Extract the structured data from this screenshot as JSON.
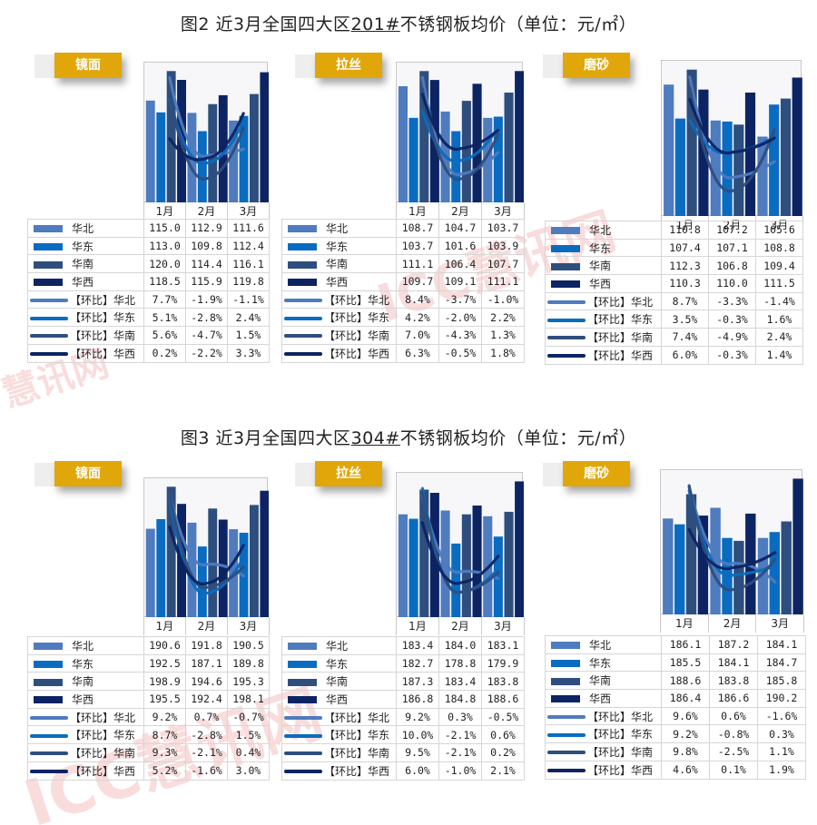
{
  "figures": [
    {
      "title_prefix": "图2  近3月全国四大区",
      "title_grade": "201#",
      "title_suffix": "不锈钢板均价（单位：元/㎡）",
      "panels": [
        {
          "finish": "镜面",
          "months": [
            "1月",
            "2月",
            "3月"
          ],
          "rows": [
            {
              "label": "华北",
              "values": [
                "115.0",
                "112.9",
                "111.6"
              ]
            },
            {
              "label": "华东",
              "values": [
                "113.0",
                "109.8",
                "112.4"
              ]
            },
            {
              "label": "华南",
              "values": [
                "120.0",
                "114.4",
                "116.1"
              ]
            },
            {
              "label": "华西",
              "values": [
                "118.5",
                "115.9",
                "119.8"
              ]
            },
            {
              "label": "【环比】华北",
              "values": [
                "7.7%",
                "-1.9%",
                "-1.1%"
              ]
            },
            {
              "label": "【环比】华东",
              "values": [
                "5.1%",
                "-2.8%",
                "2.4%"
              ]
            },
            {
              "label": "【环比】华南",
              "values": [
                "5.6%",
                "-4.7%",
                "1.5%"
              ]
            },
            {
              "label": "【环比】华西",
              "values": [
                "0.2%",
                "-2.2%",
                "3.3%"
              ]
            }
          ]
        },
        {
          "finish": "拉丝",
          "months": [
            "1月",
            "2月",
            "3月"
          ],
          "rows": [
            {
              "label": "华北",
              "values": [
                "108.7",
                "104.7",
                "103.7"
              ]
            },
            {
              "label": "华东",
              "values": [
                "103.7",
                "101.6",
                "103.9"
              ]
            },
            {
              "label": "华南",
              "values": [
                "111.1",
                "106.4",
                "107.7"
              ]
            },
            {
              "label": "华西",
              "values": [
                "109.7",
                "109.1",
                "111.1"
              ]
            },
            {
              "label": "【环比】华北",
              "values": [
                "8.4%",
                "-3.7%",
                "-1.0%"
              ]
            },
            {
              "label": "【环比】华东",
              "values": [
                "4.2%",
                "-2.0%",
                "2.2%"
              ]
            },
            {
              "label": "【环比】华南",
              "values": [
                "7.0%",
                "-4.3%",
                "1.3%"
              ]
            },
            {
              "label": "【环比】华西",
              "values": [
                "6.3%",
                "-0.5%",
                "1.8%"
              ]
            }
          ]
        },
        {
          "finish": "磨砂",
          "months": [
            "1月",
            "2月",
            "3月"
          ],
          "rows": [
            {
              "label": "华北",
              "values": [
                "110.8",
                "107.2",
                "105.6"
              ]
            },
            {
              "label": "华东",
              "values": [
                "107.4",
                "107.1",
                "108.8"
              ]
            },
            {
              "label": "华南",
              "values": [
                "112.3",
                "106.8",
                "109.4"
              ]
            },
            {
              "label": "华西",
              "values": [
                "110.3",
                "110.0",
                "111.5"
              ]
            },
            {
              "label": "【环比】华北",
              "values": [
                "8.7%",
                "-3.3%",
                "-1.4%"
              ]
            },
            {
              "label": "【环比】华东",
              "values": [
                "3.5%",
                "-0.3%",
                "1.6%"
              ]
            },
            {
              "label": "【环比】华南",
              "values": [
                "7.4%",
                "-4.9%",
                "2.4%"
              ]
            },
            {
              "label": "【环比】华西",
              "values": [
                "6.0%",
                "-0.3%",
                "1.4%"
              ]
            }
          ]
        }
      ]
    },
    {
      "title_prefix": "图3  近3月全国四大区",
      "title_grade": "304#",
      "title_suffix": "不锈钢板均价（单位：元/㎡）",
      "panels": [
        {
          "finish": "镜面",
          "months": [
            "1月",
            "2月",
            "3月"
          ],
          "rows": [
            {
              "label": "华北",
              "values": [
                "190.6",
                "191.8",
                "190.5"
              ]
            },
            {
              "label": "华东",
              "values": [
                "192.5",
                "187.1",
                "189.8"
              ]
            },
            {
              "label": "华南",
              "values": [
                "198.9",
                "194.6",
                "195.3"
              ]
            },
            {
              "label": "华西",
              "values": [
                "195.5",
                "192.4",
                "198.1"
              ]
            },
            {
              "label": "【环比】华北",
              "values": [
                "9.2%",
                "0.7%",
                "-0.7%"
              ]
            },
            {
              "label": "【环比】华东",
              "values": [
                "8.7%",
                "-2.8%",
                "1.5%"
              ]
            },
            {
              "label": "【环比】华南",
              "values": [
                "9.3%",
                "-2.1%",
                "0.4%"
              ]
            },
            {
              "label": "【环比】华西",
              "values": [
                "5.2%",
                "-1.6%",
                "3.0%"
              ]
            }
          ]
        },
        {
          "finish": "拉丝",
          "months": [
            "1月",
            "2月",
            "3月"
          ],
          "rows": [
            {
              "label": "华北",
              "values": [
                "183.4",
                "184.0",
                "183.1"
              ]
            },
            {
              "label": "华东",
              "values": [
                "182.7",
                "178.8",
                "179.9"
              ]
            },
            {
              "label": "华南",
              "values": [
                "187.3",
                "183.4",
                "183.8"
              ]
            },
            {
              "label": "华西",
              "values": [
                "186.8",
                "184.8",
                "188.6"
              ]
            },
            {
              "label": "【环比】华北",
              "values": [
                "9.2%",
                "0.3%",
                "-0.5%"
              ]
            },
            {
              "label": "【环比】华东",
              "values": [
                "10.0%",
                "-2.1%",
                "0.6%"
              ]
            },
            {
              "label": "【环比】华南",
              "values": [
                "9.5%",
                "-2.1%",
                "0.2%"
              ]
            },
            {
              "label": "【环比】华西",
              "values": [
                "6.0%",
                "-1.0%",
                "2.1%"
              ]
            }
          ]
        },
        {
          "finish": "磨砂",
          "months": [
            "1月",
            "2月",
            "3月"
          ],
          "rows": [
            {
              "label": "华北",
              "values": [
                "186.1",
                "187.2",
                "184.1"
              ]
            },
            {
              "label": "华东",
              "values": [
                "185.5",
                "184.1",
                "184.7"
              ]
            },
            {
              "label": "华南",
              "values": [
                "188.6",
                "183.8",
                "185.8"
              ]
            },
            {
              "label": "华西",
              "values": [
                "186.4",
                "186.6",
                "190.2"
              ]
            },
            {
              "label": "【环比】华北",
              "values": [
                "9.6%",
                "0.6%",
                "-1.6%"
              ]
            },
            {
              "label": "【环比】华东",
              "values": [
                "9.2%",
                "-0.8%",
                "0.3%"
              ]
            },
            {
              "label": "【环比】华南",
              "values": [
                "9.8%",
                "-2.5%",
                "1.1%"
              ]
            },
            {
              "label": "【环比】华西",
              "values": [
                "4.6%",
                "0.1%",
                "1.9%"
              ]
            }
          ]
        }
      ]
    }
  ],
  "series_colors": {
    "华北": "#4f7bbf",
    "华东": "#0a6cc0",
    "华南": "#2e4e7e",
    "华西": "#0c2463"
  },
  "accent_tag_color": "#e1a60a",
  "watermarks": [
    "慧讯网",
    "ICC慧讯网",
    "ICC慧讯网"
  ],
  "chart_data": [
    {
      "type": "bar",
      "title": "图2 近3月全国四大区201#不锈钢板均价（单位：元/㎡）— 镜面",
      "categories": [
        "1月",
        "2月",
        "3月"
      ],
      "series": [
        {
          "name": "华北",
          "values": [
            115.0,
            112.9,
            111.6
          ]
        },
        {
          "name": "华东",
          "values": [
            113.0,
            109.8,
            112.4
          ]
        },
        {
          "name": "华南",
          "values": [
            120.0,
            114.4,
            116.1
          ]
        },
        {
          "name": "华西",
          "values": [
            118.5,
            115.9,
            119.8
          ]
        },
        {
          "name": "【环比】华北",
          "type": "line",
          "values": [
            7.7,
            -1.9,
            -1.1
          ]
        },
        {
          "name": "【环比】华东",
          "type": "line",
          "values": [
            5.1,
            -2.8,
            2.4
          ]
        },
        {
          "name": "【环比】华南",
          "type": "line",
          "values": [
            5.6,
            -4.7,
            1.5
          ]
        },
        {
          "name": "【环比】华西",
          "type": "line",
          "values": [
            0.2,
            -2.2,
            3.3
          ]
        }
      ]
    },
    {
      "type": "bar",
      "title": "图2 近3月全国四大区201#不锈钢板均价（单位：元/㎡）— 拉丝",
      "categories": [
        "1月",
        "2月",
        "3月"
      ],
      "series": [
        {
          "name": "华北",
          "values": [
            108.7,
            104.7,
            103.7
          ]
        },
        {
          "name": "华东",
          "values": [
            103.7,
            101.6,
            103.9
          ]
        },
        {
          "name": "华南",
          "values": [
            111.1,
            106.4,
            107.7
          ]
        },
        {
          "name": "华西",
          "values": [
            109.7,
            109.1,
            111.1
          ]
        },
        {
          "name": "【环比】华北",
          "type": "line",
          "values": [
            8.4,
            -3.7,
            -1.0
          ]
        },
        {
          "name": "【环比】华东",
          "type": "line",
          "values": [
            4.2,
            -2.0,
            2.2
          ]
        },
        {
          "name": "【环比】华南",
          "type": "line",
          "values": [
            7.0,
            -4.3,
            1.3
          ]
        },
        {
          "name": "【环比】华西",
          "type": "line",
          "values": [
            6.3,
            -0.5,
            1.8
          ]
        }
      ]
    },
    {
      "type": "bar",
      "title": "图2 近3月全国四大区201#不锈钢板均价（单位：元/㎡）— 磨砂",
      "categories": [
        "1月",
        "2月",
        "3月"
      ],
      "series": [
        {
          "name": "华北",
          "values": [
            110.8,
            107.2,
            105.6
          ]
        },
        {
          "name": "华东",
          "values": [
            107.4,
            107.1,
            108.8
          ]
        },
        {
          "name": "华南",
          "values": [
            112.3,
            106.8,
            109.4
          ]
        },
        {
          "name": "华西",
          "values": [
            110.3,
            110.0,
            111.5
          ]
        },
        {
          "name": "【环比】华北",
          "type": "line",
          "values": [
            8.7,
            -3.3,
            -1.4
          ]
        },
        {
          "name": "【环比】华东",
          "type": "line",
          "values": [
            3.5,
            -0.3,
            1.6
          ]
        },
        {
          "name": "【环比】华南",
          "type": "line",
          "values": [
            7.4,
            -4.9,
            2.4
          ]
        },
        {
          "name": "【环比】华西",
          "type": "line",
          "values": [
            6.0,
            -0.3,
            1.4
          ]
        }
      ]
    },
    {
      "type": "bar",
      "title": "图3 近3月全国四大区304#不锈钢板均价（单位：元/㎡）— 镜面",
      "categories": [
        "1月",
        "2月",
        "3月"
      ],
      "series": [
        {
          "name": "华北",
          "values": [
            190.6,
            191.8,
            190.5
          ]
        },
        {
          "name": "华东",
          "values": [
            192.5,
            187.1,
            189.8
          ]
        },
        {
          "name": "华南",
          "values": [
            198.9,
            194.6,
            195.3
          ]
        },
        {
          "name": "华西",
          "values": [
            195.5,
            192.4,
            198.1
          ]
        },
        {
          "name": "【环比】华北",
          "type": "line",
          "values": [
            9.2,
            0.7,
            -0.7
          ]
        },
        {
          "name": "【环比】华东",
          "type": "line",
          "values": [
            8.7,
            -2.8,
            1.5
          ]
        },
        {
          "name": "【环比】华南",
          "type": "line",
          "values": [
            9.3,
            -2.1,
            0.4
          ]
        },
        {
          "name": "【环比】华西",
          "type": "line",
          "values": [
            5.2,
            -1.6,
            3.0
          ]
        }
      ]
    },
    {
      "type": "bar",
      "title": "图3 近3月全国四大区304#不锈钢板均价（单位：元/㎡）— 拉丝",
      "categories": [
        "1月",
        "2月",
        "3月"
      ],
      "series": [
        {
          "name": "华北",
          "values": [
            183.4,
            184.0,
            183.1
          ]
        },
        {
          "name": "华东",
          "values": [
            182.7,
            178.8,
            179.9
          ]
        },
        {
          "name": "华南",
          "values": [
            187.3,
            183.4,
            183.8
          ]
        },
        {
          "name": "华西",
          "values": [
            186.8,
            184.8,
            188.6
          ]
        },
        {
          "name": "【环比】华北",
          "type": "line",
          "values": [
            9.2,
            0.3,
            -0.5
          ]
        },
        {
          "name": "【环比】华东",
          "type": "line",
          "values": [
            10.0,
            -2.1,
            0.6
          ]
        },
        {
          "name": "【环比】华南",
          "type": "line",
          "values": [
            9.5,
            -2.1,
            0.2
          ]
        },
        {
          "name": "【环比】华西",
          "type": "line",
          "values": [
            6.0,
            -1.0,
            2.1
          ]
        }
      ]
    },
    {
      "type": "bar",
      "title": "图3 近3月全国四大区304#不锈钢板均价（单位：元/㎡）— 磨砂",
      "categories": [
        "1月",
        "2月",
        "3月"
      ],
      "series": [
        {
          "name": "华北",
          "values": [
            186.1,
            187.2,
            184.1
          ]
        },
        {
          "name": "华东",
          "values": [
            185.5,
            184.1,
            184.7
          ]
        },
        {
          "name": "华南",
          "values": [
            188.6,
            183.8,
            185.8
          ]
        },
        {
          "name": "华西",
          "values": [
            186.4,
            186.6,
            190.2
          ]
        },
        {
          "name": "【环比】华北",
          "type": "line",
          "values": [
            9.6,
            0.6,
            -1.6
          ]
        },
        {
          "name": "【环比】华东",
          "type": "line",
          "values": [
            9.2,
            -0.8,
            0.3
          ]
        },
        {
          "name": "【环比】华南",
          "type": "line",
          "values": [
            9.8,
            -2.5,
            1.1
          ]
        },
        {
          "name": "【环比】华西",
          "type": "line",
          "values": [
            4.6,
            0.1,
            1.9
          ]
        }
      ]
    }
  ]
}
